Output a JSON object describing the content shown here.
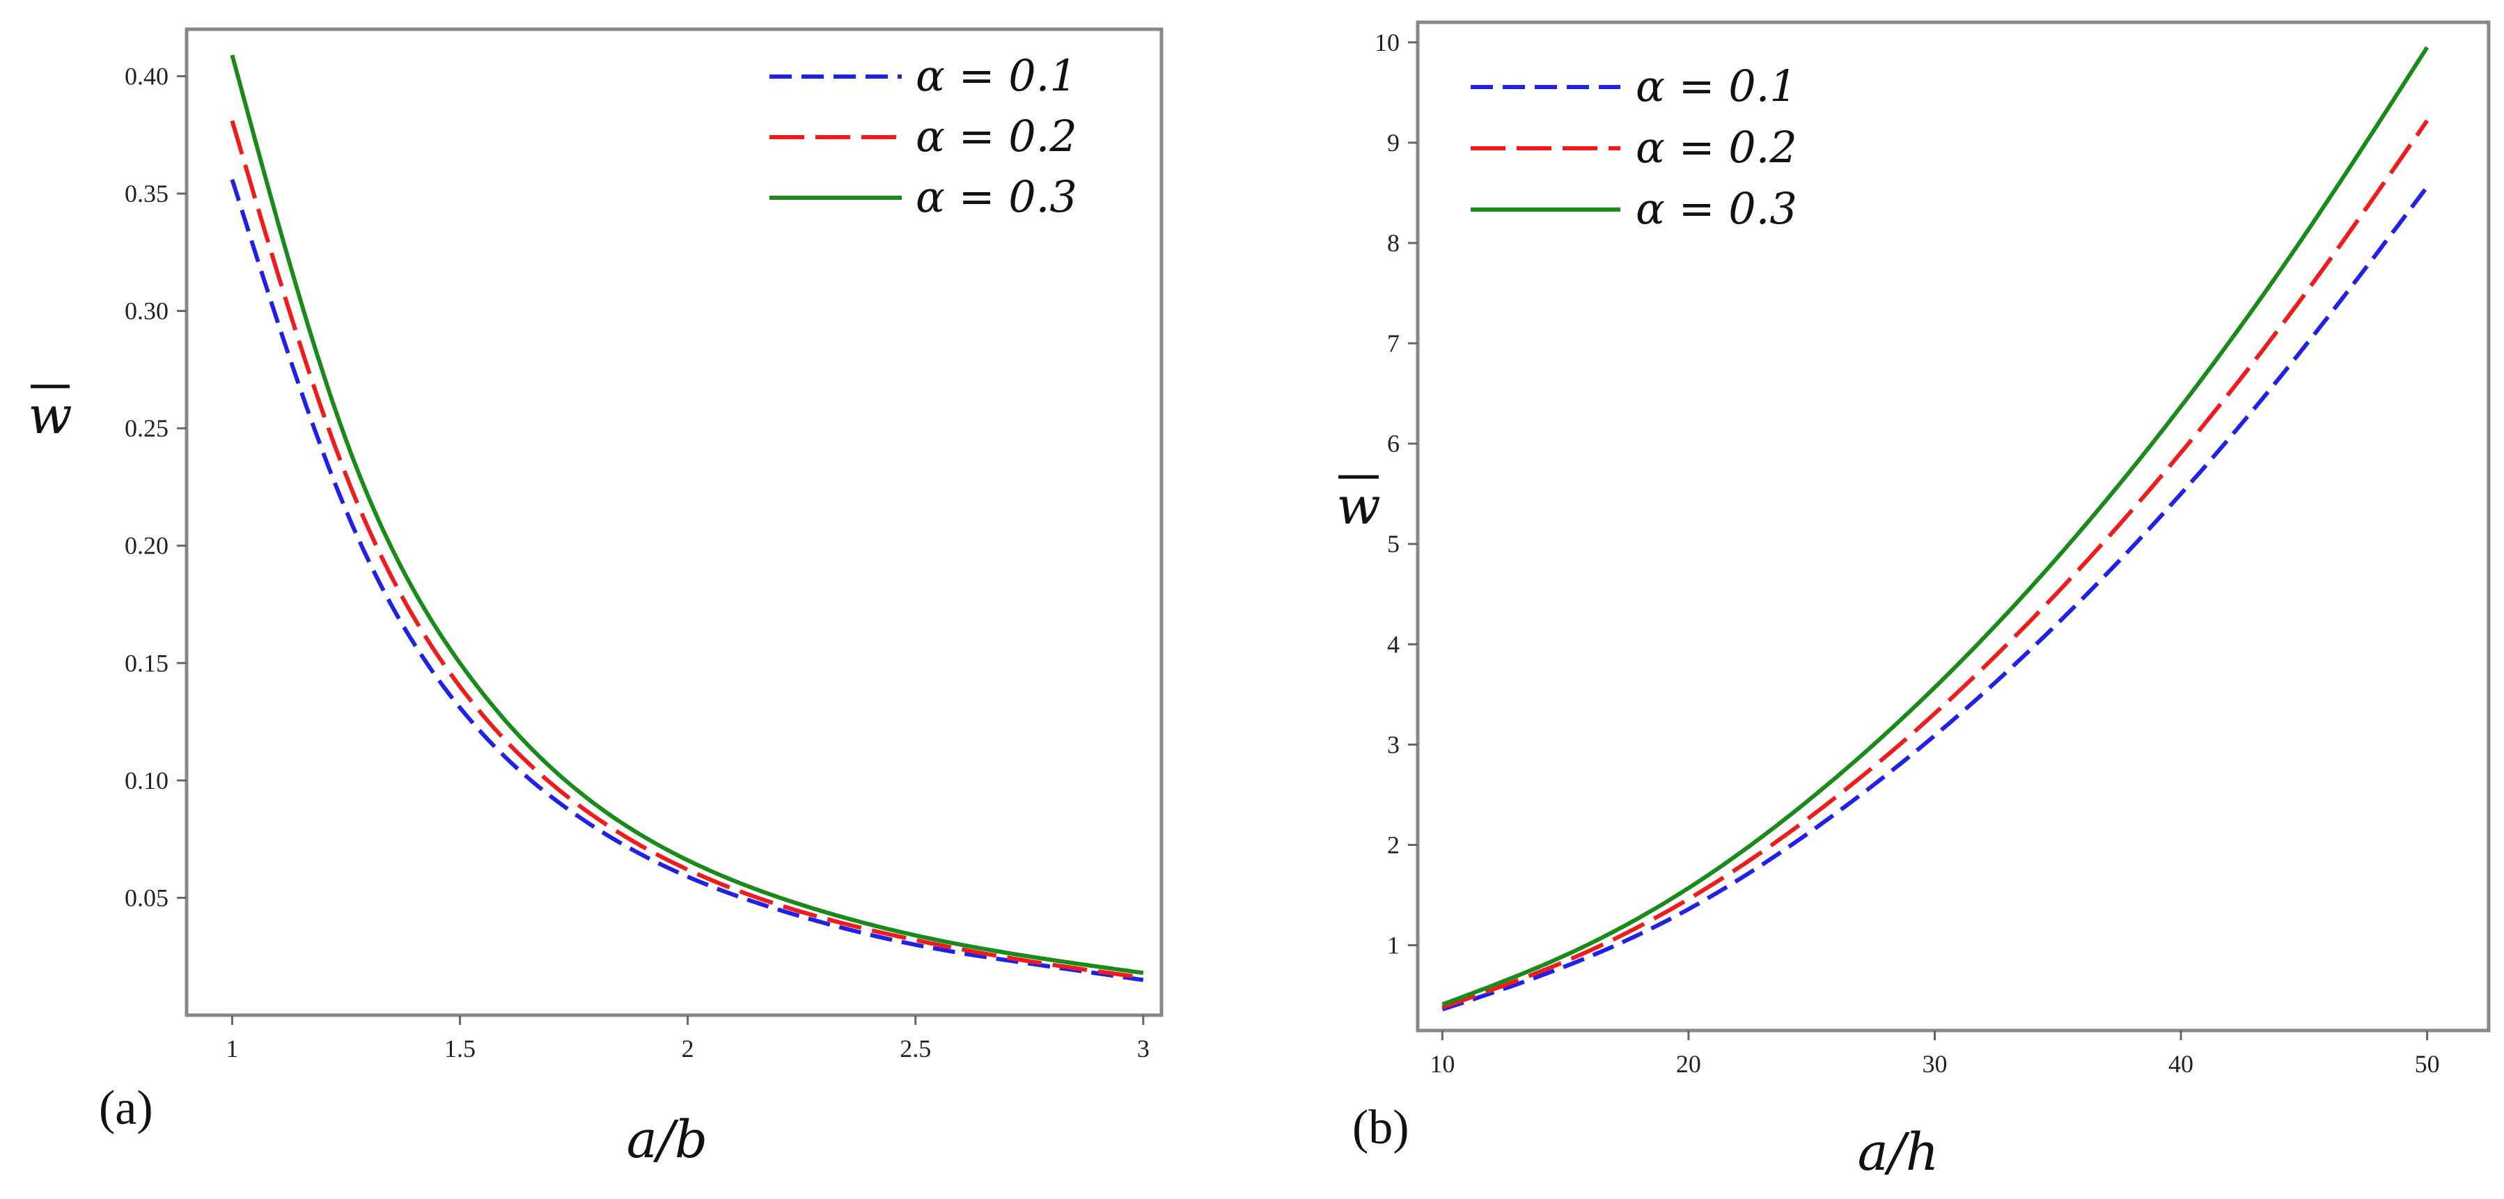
{
  "chart_data": [
    {
      "type": "line",
      "panel_label": "(a)",
      "xlabel": "a/b",
      "ylabel": "w",
      "xlim": [
        0.9,
        3.04
      ],
      "ylim": [
        0.0,
        0.42
      ],
      "x_ticks": [
        1,
        1.5,
        2,
        2.5,
        3
      ],
      "x_tick_labels": [
        "1",
        "1.5",
        "2",
        "2.5",
        "3"
      ],
      "y_ticks": [
        0.05,
        0.1,
        0.15,
        0.2,
        0.25,
        0.3,
        0.35,
        0.4
      ],
      "y_tick_labels": [
        "0.05",
        "0.10",
        "0.15",
        "0.20",
        "0.25",
        "0.30",
        "0.35",
        "0.40"
      ],
      "legend_position": "top-right",
      "series": [
        {
          "name": "α = 0.1",
          "color": "#2121e6",
          "dash": "short-dash",
          "x": [
            1,
            1.25,
            1.5,
            1.75,
            2,
            2.25,
            2.5,
            2.75,
            3
          ],
          "y": [
            0.356,
            0.215,
            0.131,
            0.086,
            0.059,
            0.042,
            0.03,
            0.022,
            0.015
          ]
        },
        {
          "name": "α = 0.2",
          "color": "#ee1c1c",
          "dash": "long-dash",
          "x": [
            1,
            1.25,
            1.5,
            1.75,
            2,
            2.25,
            2.5,
            2.75,
            3
          ],
          "y": [
            0.381,
            0.23,
            0.14,
            0.091,
            0.062,
            0.044,
            0.032,
            0.023,
            0.016
          ]
        },
        {
          "name": "α = 0.3",
          "color": "#1a8a1a",
          "dash": "solid",
          "x": [
            1,
            1.25,
            1.5,
            1.75,
            2,
            2.25,
            2.5,
            2.75,
            3
          ],
          "y": [
            0.409,
            0.245,
            0.15,
            0.097,
            0.066,
            0.047,
            0.034,
            0.025,
            0.018
          ]
        }
      ]
    },
    {
      "type": "line",
      "panel_label": "(b)",
      "xlabel": "a/h",
      "ylabel": "w",
      "xlim": [
        9,
        52.5
      ],
      "ylim": [
        0.15,
        10.2
      ],
      "x_ticks": [
        10,
        20,
        30,
        40,
        50
      ],
      "x_tick_labels": [
        "10",
        "20",
        "30",
        "40",
        "50"
      ],
      "y_ticks": [
        1,
        2,
        3,
        4,
        5,
        6,
        7,
        8,
        9,
        10
      ],
      "y_tick_labels": [
        "1",
        "2",
        "3",
        "4",
        "5",
        "6",
        "7",
        "8",
        "9",
        "10"
      ],
      "legend_position": "top-left",
      "series": [
        {
          "name": "α = 0.1",
          "color": "#2121e6",
          "dash": "short-dash",
          "x": [
            10,
            15,
            20,
            25,
            30,
            35,
            40,
            45,
            50
          ],
          "y": [
            0.36,
            0.79,
            1.36,
            2.14,
            3.09,
            4.21,
            5.5,
            6.96,
            8.56
          ]
        },
        {
          "name": "α = 0.2",
          "color": "#ee1c1c",
          "dash": "long-dash",
          "x": [
            10,
            15,
            20,
            25,
            30,
            35,
            40,
            45,
            50
          ],
          "y": [
            0.38,
            0.84,
            1.46,
            2.29,
            3.31,
            4.52,
            5.91,
            7.48,
            9.22
          ]
        },
        {
          "name": "α = 0.3",
          "color": "#1a8a1a",
          "dash": "solid",
          "x": [
            10,
            15,
            20,
            25,
            30,
            35,
            40,
            45,
            50
          ],
          "y": [
            0.41,
            0.9,
            1.57,
            2.47,
            3.57,
            4.87,
            6.37,
            8.07,
            9.95
          ]
        }
      ]
    }
  ]
}
